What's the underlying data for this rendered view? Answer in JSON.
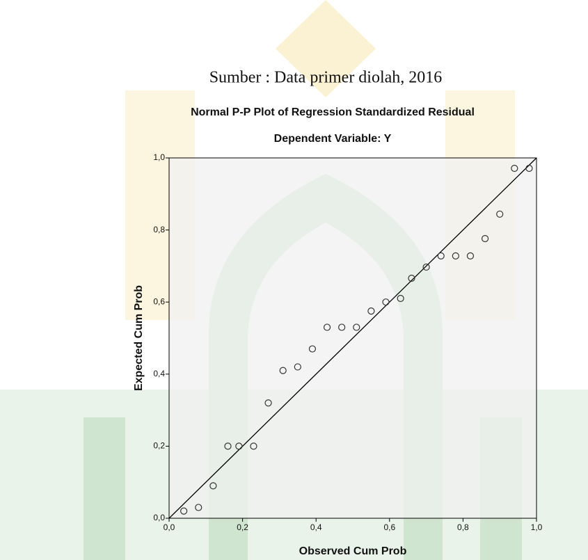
{
  "caption": "Sumber : Data primer diolah, 2016",
  "chart_data": {
    "type": "scatter",
    "title": "Normal P-P Plot of Regression Standardized Residual",
    "subtitle": "Dependent Variable: Y",
    "x_label": "Observed Cum Prob",
    "y_label": "Expected Cum Prob",
    "x": [
      0.04,
      0.08,
      0.12,
      0.16,
      0.19,
      0.23,
      0.27,
      0.31,
      0.35,
      0.39,
      0.43,
      0.47,
      0.51,
      0.55,
      0.59,
      0.63,
      0.66,
      0.7,
      0.74,
      0.78,
      0.82,
      0.86,
      0.9,
      0.94,
      0.98
    ],
    "values": [
      0.02,
      0.03,
      0.09,
      0.2,
      0.2,
      0.2,
      0.32,
      0.41,
      0.42,
      0.47,
      0.53,
      0.53,
      0.53,
      0.575,
      0.6,
      0.61,
      0.666,
      0.697,
      0.728,
      0.728,
      0.728,
      0.776,
      0.844,
      0.971,
      0.971
    ],
    "xlim": [
      0,
      1
    ],
    "ylim": [
      0,
      1
    ],
    "xticks": [
      {
        "value": 0,
        "label": "0,0"
      },
      {
        "value": 0.2,
        "label": "0,2"
      },
      {
        "value": 0.4,
        "label": "0,4"
      },
      {
        "value": 0.6,
        "label": "0,6"
      },
      {
        "value": 0.8,
        "label": "0,8"
      },
      {
        "value": 1,
        "label": "1,0"
      }
    ],
    "yticks": [
      {
        "value": 0,
        "label": "0,0"
      },
      {
        "value": 0.2,
        "label": "0,2"
      },
      {
        "value": 0.4,
        "label": "0,4"
      },
      {
        "value": 0.6,
        "label": "0,6"
      },
      {
        "value": 0.8,
        "label": "0,8"
      },
      {
        "value": 1,
        "label": "1,0"
      }
    ],
    "color": "#333333",
    "reference_line": true
  }
}
